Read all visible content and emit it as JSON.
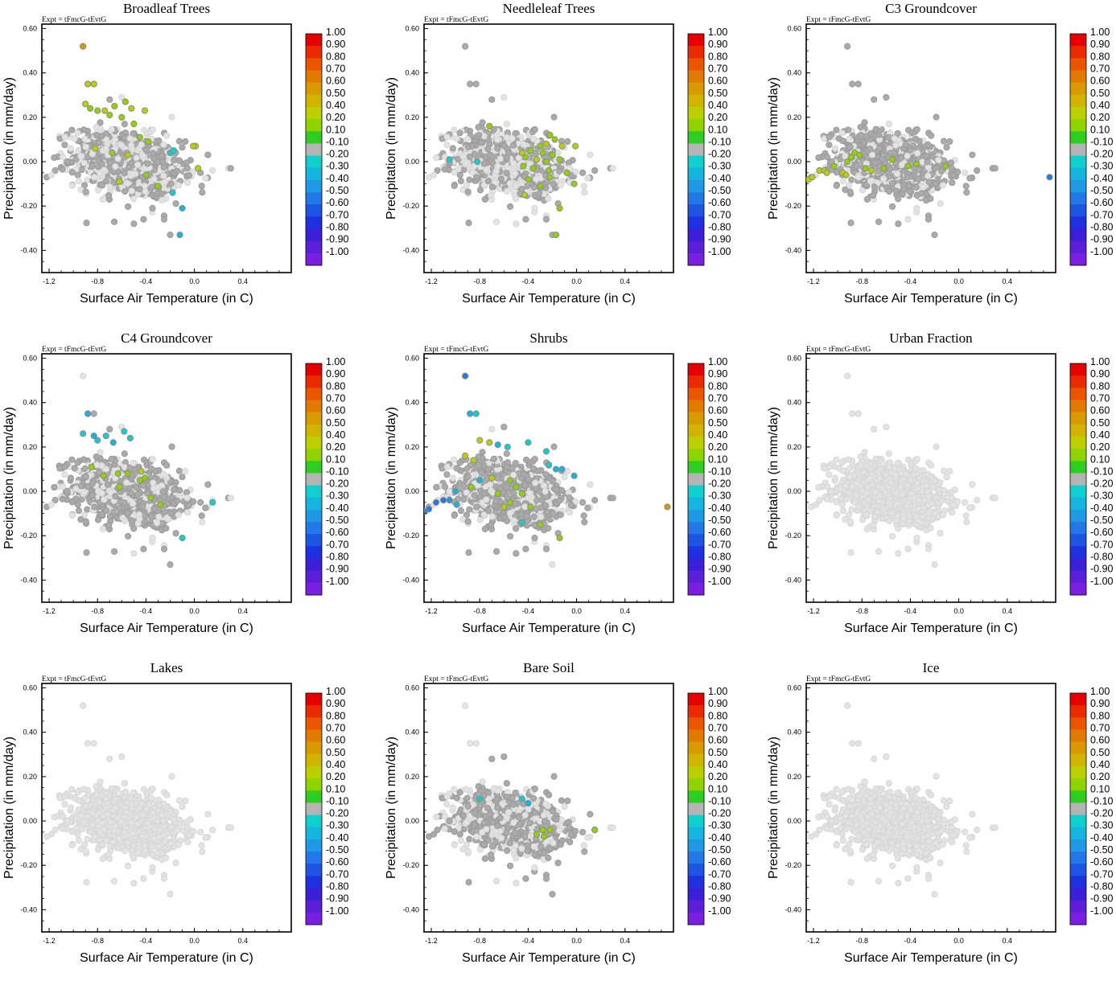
{
  "figure": {
    "expt_label": "Expt = tFmcG-tEvtG",
    "colorbar": {
      "labels": [
        "1.00",
        "0.90",
        "0.80",
        "0.70",
        "0.60",
        "0.50",
        "0.40",
        "0.20",
        "0.10",
        "-0.10",
        "-0.20",
        "-0.30",
        "-0.40",
        "-0.50",
        "-0.60",
        "-0.70",
        "-0.80",
        "-0.90",
        "-1.00"
      ],
      "colors": [
        "#e60000",
        "#ea2a00",
        "#ea5500",
        "#e27a00",
        "#d99a00",
        "#d0b400",
        "#bcd000",
        "#8fd400",
        "#2ecd22",
        "#b4b4b4",
        "#0fcfcf",
        "#15b5df",
        "#1e99e3",
        "#2178e6",
        "#1d55e2",
        "#1f30e0",
        "#3a1ed8",
        "#5c1fd9",
        "#7a1fe0"
      ],
      "cb_value_positions": [
        1.0,
        0.9,
        0.8,
        0.7,
        0.6,
        0.5,
        0.4,
        0.2,
        0.1,
        -0.1,
        -0.2,
        -0.3,
        -0.4,
        -0.5,
        -0.6,
        -0.7,
        -0.8,
        -0.9,
        -1.0
      ]
    }
  },
  "chart_data": [
    {
      "type": "scatter",
      "title": "Broadleaf Trees",
      "xlabel": "Surface Air Temperature (in C)",
      "ylabel": "Precipitation (in mm/day)",
      "xlim": [
        -1.26,
        0.8
      ],
      "ylim": [
        -0.5,
        0.62
      ],
      "x_ticks": [
        "-1.2",
        "-0.8",
        "-0.4",
        "0.0",
        "0.4"
      ],
      "y_ticks": [
        "0.60",
        "0.40",
        "0.20",
        "0.00",
        "-0.20",
        "-0.40"
      ],
      "highlight": [
        {
          "x": -0.92,
          "y": 0.52,
          "v": 0.6
        },
        {
          "x": -0.88,
          "y": 0.35,
          "v": 0.4
        },
        {
          "x": -0.83,
          "y": 0.35,
          "v": 0.4
        },
        {
          "x": -0.9,
          "y": 0.26,
          "v": 0.3
        },
        {
          "x": -0.86,
          "y": 0.24,
          "v": 0.15
        },
        {
          "x": -0.8,
          "y": 0.23,
          "v": 0.2
        },
        {
          "x": -0.74,
          "y": 0.23,
          "v": 0.25
        },
        {
          "x": -0.66,
          "y": 0.25,
          "v": 0.15
        },
        {
          "x": -0.57,
          "y": 0.27,
          "v": 0.2
        },
        {
          "x": -0.52,
          "y": 0.24,
          "v": 0.35
        },
        {
          "x": -0.41,
          "y": 0.23,
          "v": 0.3
        },
        {
          "x": -0.7,
          "y": 0.21,
          "v": 0.15
        },
        {
          "x": -0.6,
          "y": 0.2,
          "v": 0.15
        },
        {
          "x": -0.5,
          "y": 0.17,
          "v": 0.15
        },
        {
          "x": -0.45,
          "y": 0.11,
          "v": 0.2
        },
        {
          "x": -0.38,
          "y": 0.09,
          "v": 0.15
        },
        {
          "x": -0.82,
          "y": 0.06,
          "v": 0.3
        },
        {
          "x": -0.68,
          "y": 0.04,
          "v": 0.15
        },
        {
          "x": -0.55,
          "y": 0.03,
          "v": 0.25
        },
        {
          "x": 0.01,
          "y": 0.07,
          "v": 0.35
        },
        {
          "x": -0.01,
          "y": 0.07,
          "v": 0.4
        },
        {
          "x": 0.03,
          "y": -0.03,
          "v": 0.35
        },
        {
          "x": -0.4,
          "y": -0.06,
          "v": 0.15
        },
        {
          "x": -0.62,
          "y": -0.09,
          "v": 0.3
        },
        {
          "x": -0.3,
          "y": -0.11,
          "v": 0.15
        },
        {
          "x": -0.2,
          "y": 0.04,
          "v": -0.25
        },
        {
          "x": -0.17,
          "y": 0.05,
          "v": -0.2
        },
        {
          "x": -0.18,
          "y": -0.14,
          "v": -0.25
        },
        {
          "x": -0.1,
          "y": -0.21,
          "v": -0.3
        },
        {
          "x": -0.12,
          "y": -0.33,
          "v": -0.3
        }
      ]
    },
    {
      "type": "scatter",
      "title": "Needleleaf Trees",
      "xlabel": "Surface Air Temperature (in C)",
      "ylabel": "Precipitation (in mm/day)",
      "xlim": [
        -1.26,
        0.8
      ],
      "ylim": [
        -0.5,
        0.62
      ],
      "x_ticks": [
        "-1.2",
        "-0.8",
        "-0.4",
        "0.0",
        "0.4"
      ],
      "y_ticks": [
        "0.60",
        "0.40",
        "0.20",
        "0.00",
        "-0.20",
        "-0.40"
      ],
      "highlight": [
        {
          "x": -0.72,
          "y": 0.16,
          "v": 0.15
        },
        {
          "x": -0.22,
          "y": 0.12,
          "v": 0.2
        },
        {
          "x": -0.18,
          "y": 0.1,
          "v": 0.2
        },
        {
          "x": -0.25,
          "y": 0.08,
          "v": 0.3
        },
        {
          "x": -0.3,
          "y": 0.07,
          "v": 0.15
        },
        {
          "x": -0.12,
          "y": 0.07,
          "v": 0.3
        },
        {
          "x": -0.01,
          "y": 0.07,
          "v": 0.35
        },
        {
          "x": -0.45,
          "y": 0.04,
          "v": 0.35
        },
        {
          "x": -0.38,
          "y": 0.05,
          "v": 0.15
        },
        {
          "x": -0.28,
          "y": 0.04,
          "v": 0.15
        },
        {
          "x": -0.2,
          "y": 0.03,
          "v": 0.15
        },
        {
          "x": -0.42,
          "y": 0.02,
          "v": 0.15
        },
        {
          "x": -0.33,
          "y": 0.01,
          "v": 0.25
        },
        {
          "x": -0.25,
          "y": 0.0,
          "v": 0.15
        },
        {
          "x": -0.14,
          "y": 0.01,
          "v": 0.15
        },
        {
          "x": -0.44,
          "y": -0.02,
          "v": 0.15
        },
        {
          "x": -0.36,
          "y": -0.03,
          "v": 0.15
        },
        {
          "x": -0.23,
          "y": -0.04,
          "v": 0.15
        },
        {
          "x": -0.08,
          "y": -0.05,
          "v": 0.15
        },
        {
          "x": -0.4,
          "y": -0.08,
          "v": 0.2
        },
        {
          "x": -0.22,
          "y": -0.07,
          "v": 0.15
        },
        {
          "x": -0.3,
          "y": -0.11,
          "v": 0.15
        },
        {
          "x": -0.02,
          "y": -0.1,
          "v": 0.15
        },
        {
          "x": -0.43,
          "y": -0.15,
          "v": 0.35
        },
        {
          "x": -0.14,
          "y": -0.21,
          "v": 0.15
        },
        {
          "x": -0.17,
          "y": -0.33,
          "v": 0.15
        },
        {
          "x": -1.05,
          "y": 0.01,
          "v": -0.2
        },
        {
          "x": -0.82,
          "y": 0.0,
          "v": -0.2
        }
      ]
    },
    {
      "type": "scatter",
      "title": "C3 Groundcover",
      "xlabel": "Surface Air Temperature (in C)",
      "ylabel": "Precipitation (in mm/day)",
      "xlim": [
        -1.26,
        0.8
      ],
      "ylim": [
        -0.5,
        0.62
      ],
      "x_ticks": [
        "-1.2",
        "-0.8",
        "-0.4",
        "0.0",
        "0.4"
      ],
      "y_ticks": [
        "0.60",
        "0.40",
        "0.20",
        "0.00",
        "-0.20",
        "-0.40"
      ],
      "highlight": [
        {
          "x": -1.24,
          "y": -0.08,
          "v": 0.3
        },
        {
          "x": -1.21,
          "y": -0.07,
          "v": 0.35
        },
        {
          "x": -1.15,
          "y": -0.04,
          "v": 0.35
        },
        {
          "x": -1.11,
          "y": -0.04,
          "v": 0.4
        },
        {
          "x": -1.09,
          "y": -0.05,
          "v": 0.35
        },
        {
          "x": -1.03,
          "y": -0.02,
          "v": 0.2
        },
        {
          "x": -0.96,
          "y": -0.05,
          "v": 0.25
        },
        {
          "x": -0.93,
          "y": -0.06,
          "v": 0.3
        },
        {
          "x": -0.92,
          "y": 0.0,
          "v": 0.15
        },
        {
          "x": -0.89,
          "y": 0.02,
          "v": 0.15
        },
        {
          "x": -0.86,
          "y": 0.04,
          "v": 0.15
        },
        {
          "x": -0.82,
          "y": 0.03,
          "v": 0.2
        },
        {
          "x": -0.77,
          "y": -0.03,
          "v": 0.15
        },
        {
          "x": -0.72,
          "y": -0.04,
          "v": 0.3
        },
        {
          "x": -0.62,
          "y": -0.03,
          "v": 0.15
        },
        {
          "x": -0.55,
          "y": 0.01,
          "v": 0.15
        },
        {
          "x": -0.42,
          "y": -0.02,
          "v": 0.15
        },
        {
          "x": -0.35,
          "y": -0.01,
          "v": 0.15
        },
        {
          "x": -0.11,
          "y": -0.02,
          "v": 0.15
        },
        {
          "x": 0.75,
          "y": -0.07,
          "v": -0.55
        }
      ]
    },
    {
      "type": "scatter",
      "title": "C4 Groundcover",
      "xlabel": "Surface Air Temperature (in C)",
      "ylabel": "Precipitation (in mm/day)",
      "xlim": [
        -1.26,
        0.8
      ],
      "ylim": [
        -0.5,
        0.62
      ],
      "x_ticks": [
        "-1.2",
        "-0.8",
        "-0.4",
        "0.0",
        "0.4"
      ],
      "y_ticks": [
        "0.60",
        "0.40",
        "0.20",
        "0.00",
        "-0.20",
        "-0.40"
      ],
      "highlight": [
        {
          "x": -0.88,
          "y": 0.35,
          "v": -0.3
        },
        {
          "x": -0.92,
          "y": 0.26,
          "v": -0.25
        },
        {
          "x": -0.83,
          "y": 0.25,
          "v": -0.3
        },
        {
          "x": -0.8,
          "y": 0.23,
          "v": -0.2
        },
        {
          "x": -0.73,
          "y": 0.25,
          "v": -0.25
        },
        {
          "x": -0.67,
          "y": 0.22,
          "v": -0.3
        },
        {
          "x": -0.58,
          "y": 0.27,
          "v": -0.25
        },
        {
          "x": -0.53,
          "y": 0.24,
          "v": -0.2
        },
        {
          "x": -0.85,
          "y": 0.11,
          "v": 0.15
        },
        {
          "x": -0.75,
          "y": 0.07,
          "v": 0.15
        },
        {
          "x": -0.63,
          "y": 0.08,
          "v": 0.15
        },
        {
          "x": -0.55,
          "y": 0.08,
          "v": 0.15
        },
        {
          "x": -0.44,
          "y": 0.09,
          "v": 0.3
        },
        {
          "x": -0.45,
          "y": 0.05,
          "v": 0.2
        },
        {
          "x": -0.41,
          "y": 0.06,
          "v": 0.15
        },
        {
          "x": -0.62,
          "y": 0.02,
          "v": 0.15
        },
        {
          "x": -0.36,
          "y": -0.03,
          "v": 0.15
        },
        {
          "x": -0.28,
          "y": -0.06,
          "v": 0.15
        },
        {
          "x": 0.15,
          "y": -0.05,
          "v": -0.25
        },
        {
          "x": -0.1,
          "y": -0.21,
          "v": -0.2
        }
      ]
    },
    {
      "type": "scatter",
      "title": "Shrubs",
      "xlabel": "Surface Air Temperature (in C)",
      "ylabel": "Precipitation (in mm/day)",
      "xlim": [
        -1.26,
        0.8
      ],
      "ylim": [
        -0.5,
        0.62
      ],
      "x_ticks": [
        "-1.2",
        "-0.8",
        "-0.4",
        "0.0",
        "0.4"
      ],
      "y_ticks": [
        "0.60",
        "0.40",
        "0.20",
        "0.00",
        "-0.20",
        "-0.40"
      ],
      "highlight": [
        {
          "x": -0.92,
          "y": 0.52,
          "v": -0.55
        },
        {
          "x": -0.88,
          "y": 0.35,
          "v": -0.3
        },
        {
          "x": -0.83,
          "y": 0.35,
          "v": -0.25
        },
        {
          "x": -0.8,
          "y": 0.23,
          "v": 0.25
        },
        {
          "x": -0.72,
          "y": 0.22,
          "v": 0.35
        },
        {
          "x": -0.92,
          "y": 0.16,
          "v": 0.3
        },
        {
          "x": -0.85,
          "y": 0.14,
          "v": 0.3
        },
        {
          "x": -0.65,
          "y": 0.21,
          "v": -0.3
        },
        {
          "x": -0.57,
          "y": 0.2,
          "v": -0.25
        },
        {
          "x": -0.4,
          "y": 0.22,
          "v": -0.2
        },
        {
          "x": -0.25,
          "y": 0.18,
          "v": -0.2
        },
        {
          "x": -0.23,
          "y": 0.12,
          "v": -0.25
        },
        {
          "x": -0.17,
          "y": 0.1,
          "v": -0.3
        },
        {
          "x": -0.12,
          "y": 0.1,
          "v": -0.3
        },
        {
          "x": -0.02,
          "y": 0.07,
          "v": -0.35
        },
        {
          "x": -0.8,
          "y": 0.05,
          "v": -0.3
        },
        {
          "x": -0.87,
          "y": 0.02,
          "v": 0.15
        },
        {
          "x": -0.7,
          "y": 0.06,
          "v": 0.3
        },
        {
          "x": -0.55,
          "y": 0.05,
          "v": 0.15
        },
        {
          "x": -0.5,
          "y": 0.02,
          "v": 0.15
        },
        {
          "x": -0.65,
          "y": -0.01,
          "v": 0.15
        },
        {
          "x": -0.45,
          "y": -0.01,
          "v": 0.15
        },
        {
          "x": -0.55,
          "y": -0.05,
          "v": 0.15
        },
        {
          "x": -0.6,
          "y": -0.07,
          "v": 0.3
        },
        {
          "x": -0.38,
          "y": -0.07,
          "v": 0.15
        },
        {
          "x": -0.45,
          "y": -0.14,
          "v": -0.25
        },
        {
          "x": -0.3,
          "y": -0.15,
          "v": 0.15
        },
        {
          "x": -0.14,
          "y": -0.21,
          "v": 0.15
        },
        {
          "x": -1.0,
          "y": 0.0,
          "v": -0.3
        },
        {
          "x": -1.05,
          "y": -0.04,
          "v": -0.45
        },
        {
          "x": -1.1,
          "y": -0.04,
          "v": -0.5
        },
        {
          "x": -1.16,
          "y": -0.05,
          "v": -0.55
        },
        {
          "x": -1.22,
          "y": -0.08,
          "v": -0.5
        },
        {
          "x": -1.25,
          "y": -0.09,
          "v": -0.45
        },
        {
          "x": -0.99,
          "y": -0.06,
          "v": -0.35
        },
        {
          "x": 0.75,
          "y": -0.07,
          "v": 0.55
        }
      ]
    },
    {
      "type": "scatter",
      "title": "Urban Fraction",
      "xlabel": "Surface Air Temperature (in C)",
      "ylabel": "Precipitation (in mm/day)",
      "xlim": [
        -1.26,
        0.8
      ],
      "ylim": [
        -0.5,
        0.62
      ],
      "x_ticks": [
        "-1.2",
        "-0.8",
        "-0.4",
        "0.0",
        "0.4"
      ],
      "y_ticks": [
        "0.60",
        "0.40",
        "0.20",
        "0.00",
        "-0.20",
        "-0.40"
      ],
      "highlight": []
    },
    {
      "type": "scatter",
      "title": "Lakes",
      "xlabel": "Surface Air Temperature (in C)",
      "ylabel": "Precipitation (in mm/day)",
      "xlim": [
        -1.26,
        0.8
      ],
      "ylim": [
        -0.5,
        0.62
      ],
      "x_ticks": [
        "-1.2",
        "-0.8",
        "-0.4",
        "0.0",
        "0.4"
      ],
      "y_ticks": [
        "0.60",
        "0.40",
        "0.20",
        "0.00",
        "-0.20",
        "-0.40"
      ],
      "highlight": []
    },
    {
      "type": "scatter",
      "title": "Bare Soil",
      "xlabel": "Surface Air Temperature (in C)",
      "ylabel": "Precipitation (in mm/day)",
      "xlim": [
        -1.26,
        0.8
      ],
      "ylim": [
        -0.5,
        0.62
      ],
      "x_ticks": [
        "-1.2",
        "-0.8",
        "-0.4",
        "0.0",
        "0.4"
      ],
      "y_ticks": [
        "0.60",
        "0.40",
        "0.20",
        "0.00",
        "-0.20",
        "-0.40"
      ],
      "highlight": [
        {
          "x": -0.28,
          "y": -0.04,
          "v": 0.15
        },
        {
          "x": -0.22,
          "y": -0.04,
          "v": 0.15
        },
        {
          "x": -0.33,
          "y": -0.06,
          "v": 0.15
        },
        {
          "x": -0.27,
          "y": -0.07,
          "v": 0.15
        },
        {
          "x": 0.15,
          "y": -0.04,
          "v": 0.15
        },
        {
          "x": -0.8,
          "y": 0.1,
          "v": -0.2
        },
        {
          "x": -0.45,
          "y": 0.1,
          "v": -0.2
        },
        {
          "x": -0.4,
          "y": 0.08,
          "v": -0.3
        }
      ]
    },
    {
      "type": "scatter",
      "title": "Ice",
      "xlabel": "Surface Air Temperature (in C)",
      "ylabel": "Precipitation (in mm/day)",
      "xlim": [
        -1.26,
        0.8
      ],
      "ylim": [
        -0.5,
        0.62
      ],
      "x_ticks": [
        "-1.2",
        "-0.8",
        "-0.4",
        "0.0",
        "0.4"
      ],
      "y_ticks": [
        "0.60",
        "0.40",
        "0.20",
        "0.00",
        "-0.20",
        "-0.40"
      ],
      "highlight": []
    }
  ]
}
